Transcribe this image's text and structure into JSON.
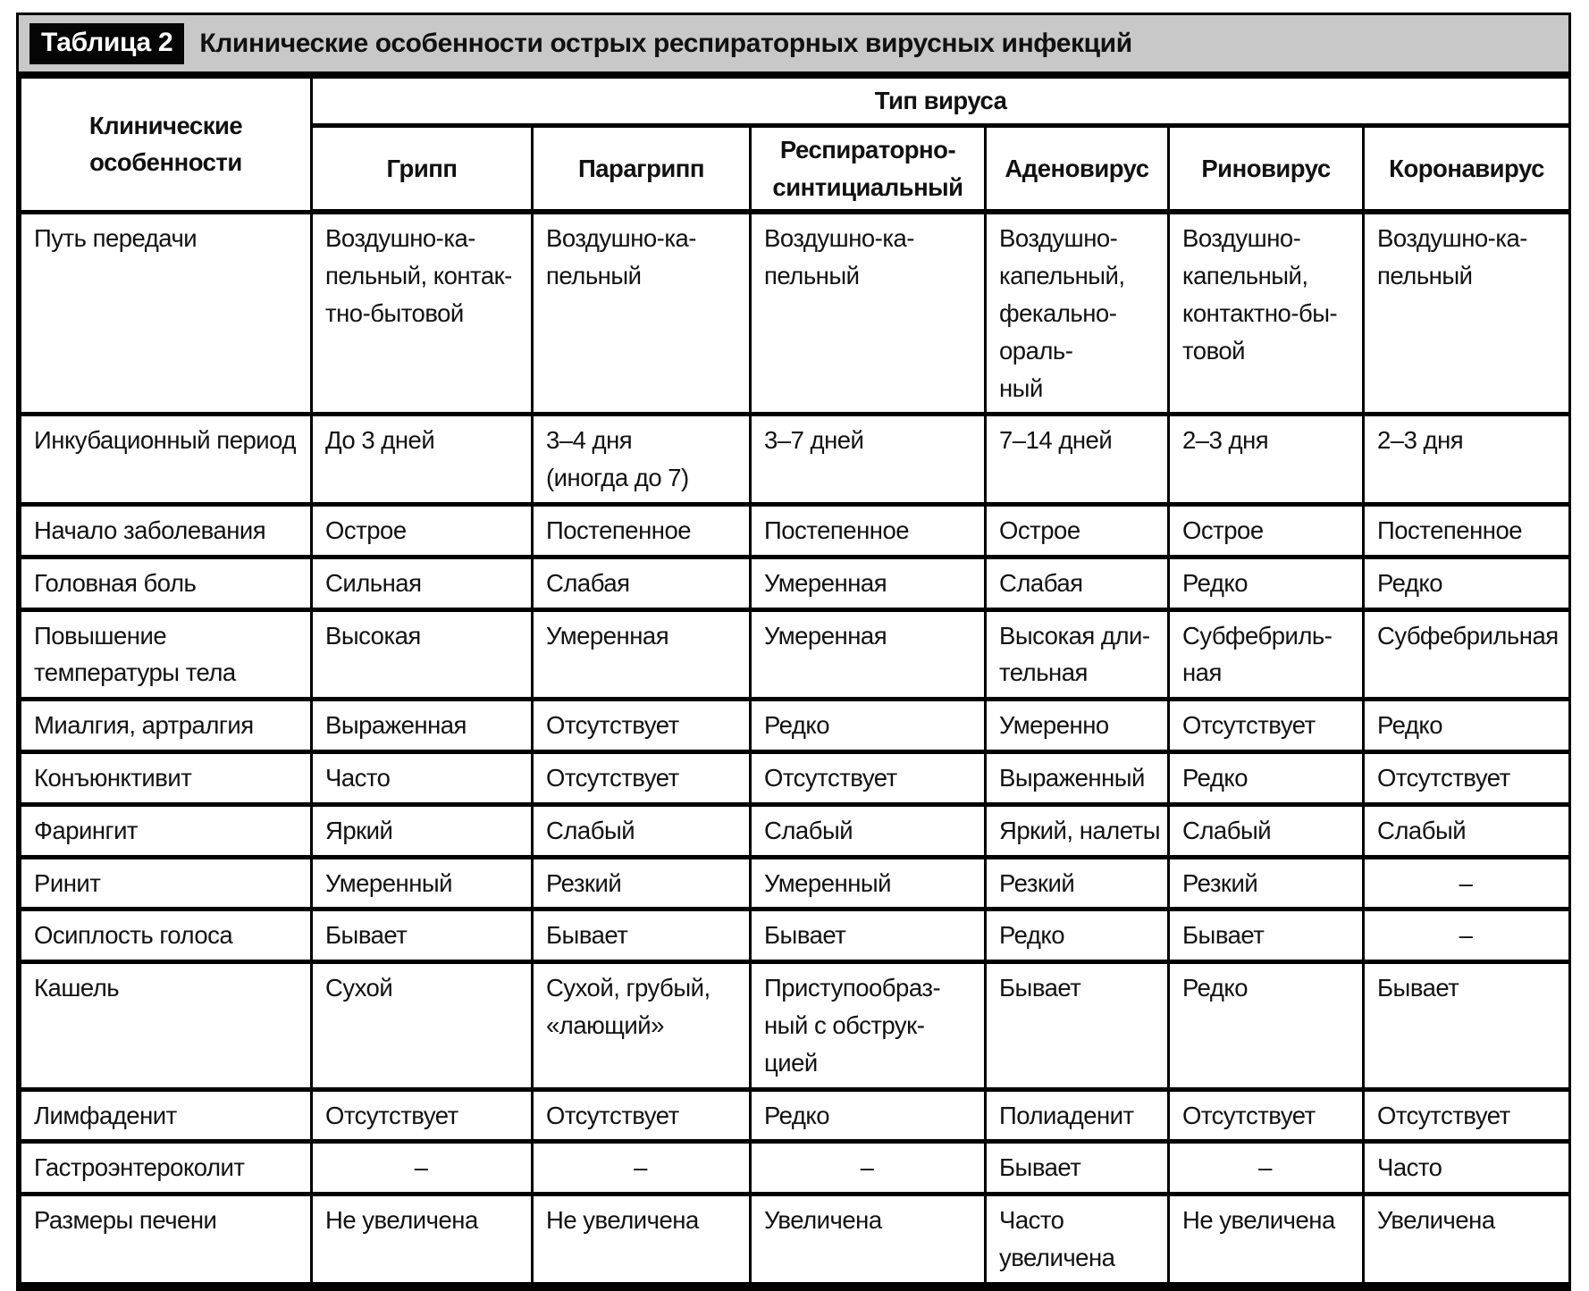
{
  "table": {
    "tag": "Таблица 2",
    "title": "Клинические особенности острых респираторных вирусных инфекций",
    "corner_header": "Клинические\nособенности",
    "group_header": "Тип вируса",
    "columns": [
      "Грипп",
      "Парагрипп",
      "Респираторно-\nсинтициальный",
      "Аденовирус",
      "Риновирус",
      "Коронавирус"
    ],
    "rows": [
      {
        "label": "Путь передачи",
        "values": [
          "Воздушно-ка-\nпельный, контак-\nтно-бытовой",
          "Воздушно-ка-\nпельный",
          "Воздушно-ка-\nпельный",
          "Воздушно-\nкапельный,\nфекально-ораль-\nный",
          "Воздушно-\nкапельный,\nконтактно-бы-\nтовой",
          "Воздушно-ка-\nпельный"
        ]
      },
      {
        "label": "Инкубационный период",
        "values": [
          "До 3 дней",
          "3–4 дня\n(иногда до 7)",
          "3–7 дней",
          "7–14 дней",
          "2–3 дня",
          "2–3 дня"
        ]
      },
      {
        "label": "Начало заболевания",
        "values": [
          "Острое",
          "Постепенное",
          "Постепенное",
          "Острое",
          "Острое",
          "Постепенное"
        ]
      },
      {
        "label": "Головная боль",
        "values": [
          "Сильная",
          "Слабая",
          "Умеренная",
          "Слабая",
          "Редко",
          "Редко"
        ]
      },
      {
        "label": "Повышение\nтемпературы тела",
        "values": [
          "Высокая",
          "Умеренная",
          "Умеренная",
          "Высокая дли-\nтельная",
          "Субфебриль-\nная",
          "Субфебрильная"
        ]
      },
      {
        "label": "Миалгия, артралгия",
        "values": [
          "Выраженная",
          "Отсутствует",
          "Редко",
          "Умеренно",
          "Отсутствует",
          "Редко"
        ]
      },
      {
        "label": "Конъюнктивит",
        "values": [
          "Часто",
          "Отсутствует",
          "Отсутствует",
          "Выраженный",
          "Редко",
          "Отсутствует"
        ]
      },
      {
        "label": "Фарингит",
        "values": [
          "Яркий",
          "Слабый",
          "Слабый",
          "Яркий, налеты",
          "Слабый",
          "Слабый"
        ]
      },
      {
        "label": "Ринит",
        "values": [
          "Умеренный",
          "Резкий",
          "Умеренный",
          "Резкий",
          "Резкий",
          "–"
        ]
      },
      {
        "label": "Осиплость голоса",
        "values": [
          "Бывает",
          "Бывает",
          "Бывает",
          "Редко",
          "Бывает",
          "–"
        ]
      },
      {
        "label": "Кашель",
        "values": [
          "Сухой",
          "Сухой, грубый,\n«лающий»",
          "Приступообраз-\nный с обструк-\nцией",
          "Бывает",
          "Редко",
          "Бывает"
        ]
      },
      {
        "label": "Лимфаденит",
        "values": [
          "Отсутствует",
          "Отсутствует",
          "Редко",
          "Полиаденит",
          "Отсутствует",
          "Отсутствует"
        ]
      },
      {
        "label": "Гастроэнтероколит",
        "values": [
          "–",
          "–",
          "–",
          "Бывает",
          "–",
          "Часто"
        ]
      },
      {
        "label": "Размеры печени",
        "values": [
          "Не увеличена",
          "Не увеличена",
          "Увеличена",
          "Часто увеличена",
          "Не увеличена",
          "Увеличена"
        ]
      }
    ]
  },
  "colors": {
    "title_bar_bg": "#c8c8c8",
    "tag_bg": "#050505",
    "tag_text": "#ffffff",
    "border": "#000000",
    "text": "#111111"
  }
}
